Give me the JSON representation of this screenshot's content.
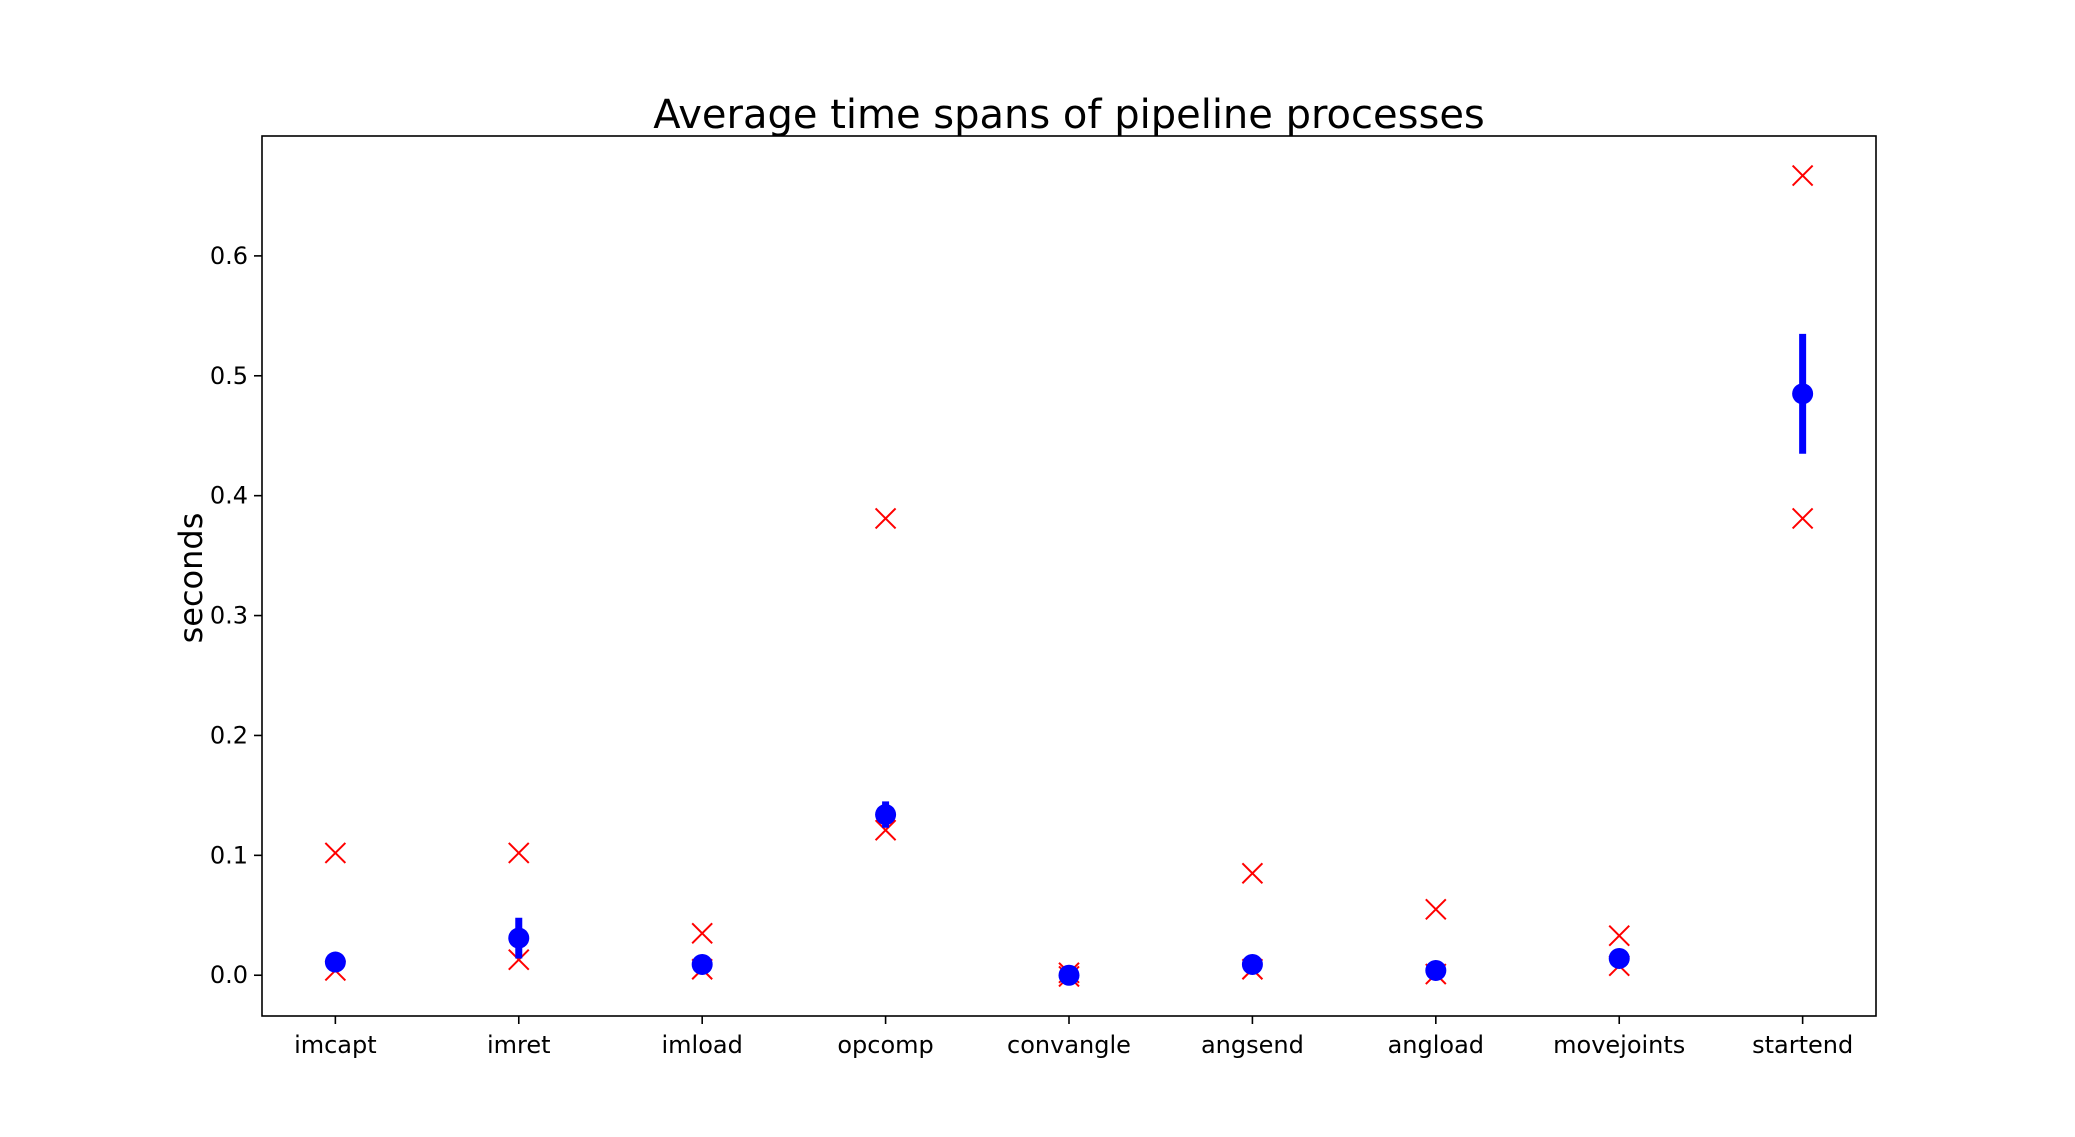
{
  "chart_data": {
    "type": "scatter",
    "title": "Average time spans of pipeline processes",
    "xlabel": "",
    "ylabel": "seconds",
    "categories": [
      "imcapt",
      "imret",
      "imload",
      "opcomp",
      "convangle",
      "angsend",
      "angload",
      "movejoints",
      "startend"
    ],
    "ylim": [
      -0.034,
      0.7
    ],
    "yticks": [
      0.0,
      0.1,
      0.2,
      0.3,
      0.4,
      0.5,
      0.6
    ],
    "ytick_labels": [
      "0.0",
      "0.1",
      "0.2",
      "0.3",
      "0.4",
      "0.5",
      "0.6"
    ],
    "grid": false,
    "series": [
      {
        "marker": "circle",
        "color": "#0000ff",
        "values": [
          0.011,
          0.031,
          0.009,
          0.134,
          0.0,
          0.009,
          0.004,
          0.014,
          0.485
        ],
        "error": [
          0.004,
          0.017,
          0.002,
          0.011,
          0.001,
          0.002,
          0.001,
          0.002,
          0.05
        ]
      },
      {
        "marker": "x",
        "color": "#ff0000",
        "values": [
          0.102,
          0.102,
          0.035,
          0.381,
          0.002,
          0.085,
          0.055,
          0.033,
          0.667
        ]
      },
      {
        "marker": "x",
        "color": "#ff0000",
        "values": [
          0.004,
          0.013,
          0.005,
          0.121,
          -0.001,
          0.005,
          0.001,
          0.008,
          0.381
        ]
      }
    ]
  }
}
